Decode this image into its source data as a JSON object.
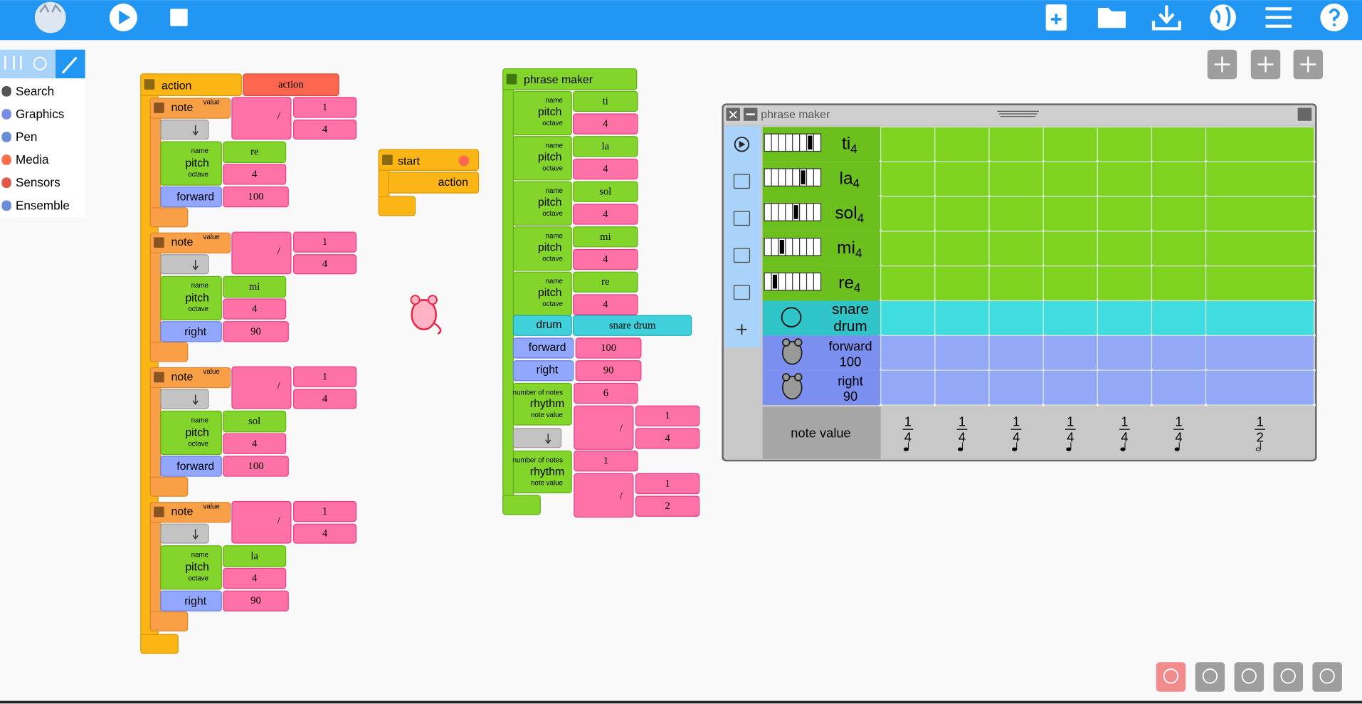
{
  "palette": {
    "items": [
      "Search",
      "Graphics",
      "Pen",
      "Media",
      "Sensors",
      "Ensemble"
    ]
  },
  "labels": {
    "note": "note",
    "value": "value",
    "name": "name",
    "pitch": "pitch",
    "octave": "octave",
    "divide": "/",
    "drum": "drum",
    "rhythm": "rhythm",
    "number_of_notes": "number of notes",
    "note_value": "note value"
  },
  "action_block": {
    "title": "action",
    "name": "action",
    "notes": [
      {
        "numerator": 1,
        "denominator": 4,
        "pitch": "re",
        "octave": 4,
        "command": "forward",
        "amount": 100
      },
      {
        "numerator": 1,
        "denominator": 4,
        "pitch": "mi",
        "octave": 4,
        "command": "right",
        "amount": 90
      },
      {
        "numerator": 1,
        "denominator": 4,
        "pitch": "sol",
        "octave": 4,
        "command": "forward",
        "amount": 100
      },
      {
        "numerator": 1,
        "denominator": 4,
        "pitch": "la",
        "octave": 4,
        "command": "right",
        "amount": 90
      }
    ]
  },
  "start_block": {
    "title": "start",
    "action": "action"
  },
  "phrase_maker_block": {
    "title": "phrase maker",
    "pitches": [
      {
        "name": "ti",
        "octave": 4
      },
      {
        "name": "la",
        "octave": 4
      },
      {
        "name": "sol",
        "octave": 4
      },
      {
        "name": "mi",
        "octave": 4
      },
      {
        "name": "re",
        "octave": 4
      }
    ],
    "drum": "snare drum",
    "moves": [
      {
        "command": "forward",
        "amount": 100
      },
      {
        "command": "right",
        "amount": 90
      }
    ],
    "rhythms": [
      {
        "count": 6,
        "numerator": 1,
        "denominator": 4
      },
      {
        "count": 1,
        "numerator": 1,
        "denominator": 2
      }
    ]
  },
  "phrase_maker_widget": {
    "title": "phrase maker",
    "pitches": [
      {
        "name": "ti",
        "octave": 4
      },
      {
        "name": "la",
        "octave": 4
      },
      {
        "name": "sol",
        "octave": 4
      },
      {
        "name": "mi",
        "octave": 4
      },
      {
        "name": "re",
        "octave": 4
      }
    ],
    "drum": "snare drum",
    "moves": [
      {
        "command": "forward",
        "amount": 100
      },
      {
        "command": "right",
        "amount": 90
      }
    ],
    "note_value_label": "note value",
    "columns": [
      {
        "numerator": 1,
        "denominator": 4
      },
      {
        "numerator": 1,
        "denominator": 4
      },
      {
        "numerator": 1,
        "denominator": 4
      },
      {
        "numerator": 1,
        "denominator": 4
      },
      {
        "numerator": 1,
        "denominator": 4
      },
      {
        "numerator": 1,
        "denominator": 4
      },
      {
        "numerator": 1,
        "denominator": 2
      }
    ]
  }
}
